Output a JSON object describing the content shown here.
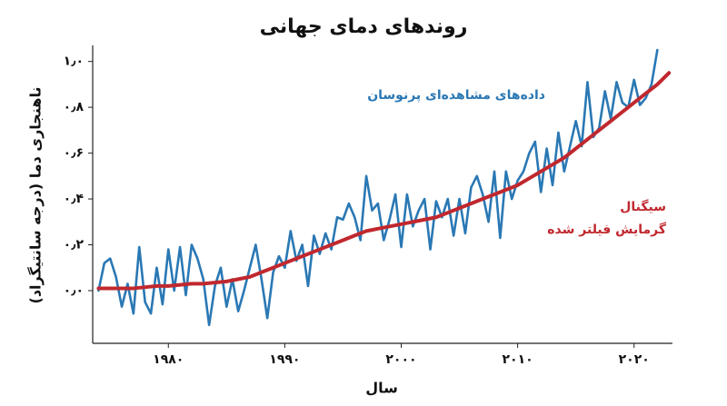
{
  "chart_data": {
    "type": "line",
    "title": "روندهای دمای جهانی",
    "xlabel": "سال",
    "ylabel": "ناهنجاری دما (درجه سانتیگراد)",
    "xlim": [
      1973.5,
      2023.3
    ],
    "ylim": [
      -0.23,
      1.07
    ],
    "xticks": [
      {
        "value": 1980,
        "label": "۱۹۸۰"
      },
      {
        "value": 1990,
        "label": "۱۹۹۰"
      },
      {
        "value": 2000,
        "label": "۲۰۰۰"
      },
      {
        "value": 2010,
        "label": "۲۰۱۰"
      },
      {
        "value": 2020,
        "label": "۲۰۲۰"
      }
    ],
    "yticks": [
      {
        "value": 0,
        "label": "۰٫۰"
      },
      {
        "value": 0.2,
        "label": "۰٫۲"
      },
      {
        "value": 0.4,
        "label": "۰٫۴"
      },
      {
        "value": 0.6,
        "label": "۰٫۶"
      },
      {
        "value": 0.8,
        "label": "۰٫۸"
      },
      {
        "value": 1,
        "label": "۱٫۰"
      }
    ],
    "annotations": [
      "داده‌های مشاهده‌ای پرنوسان",
      "سیگنال",
      "گرمایش فیلتر شده"
    ],
    "series": [
      {
        "color": "#2a78b4",
        "x": [
          1974,
          1974.5,
          1975,
          1975.5,
          1976,
          1976.5,
          1977,
          1977.5,
          1978,
          1978.5,
          1979,
          1979.5,
          1980,
          1980.5,
          1981,
          1981.5,
          1982,
          1982.5,
          1983,
          1983.5,
          1984,
          1984.5,
          1985,
          1985.5,
          1986,
          1986.5,
          1987,
          1987.5,
          1988,
          1988.5,
          1989,
          1989.5,
          1990,
          1990.5,
          1991,
          1991.5,
          1992,
          1992.5,
          1993,
          1993.5,
          1994,
          1994.5,
          1995,
          1995.5,
          1996,
          1996.5,
          1997,
          1997.5,
          1998,
          1998.5,
          1999,
          1999.5,
          2000,
          2000.5,
          2001,
          2001.5,
          2002,
          2002.5,
          2003,
          2003.5,
          2004,
          2004.5,
          2005,
          2005.5,
          2006,
          2006.5,
          2007,
          2007.5,
          2008,
          2008.5,
          2009,
          2009.5,
          2010,
          2010.5,
          2011,
          2011.5,
          2012,
          2012.5,
          2013,
          2013.5,
          2014,
          2014.5,
          2015,
          2015.5,
          2016,
          2016.5,
          2017,
          2017.5,
          2018,
          2018.5,
          2019,
          2019.5,
          2020,
          2020.5,
          2021,
          2021.5,
          2022
        ],
        "values": [
          0.0,
          0.12,
          0.14,
          0.06,
          -0.07,
          0.03,
          -0.1,
          0.19,
          -0.05,
          -0.1,
          0.1,
          -0.06,
          0.18,
          0.0,
          0.19,
          -0.02,
          0.2,
          0.14,
          0.05,
          -0.15,
          0.02,
          0.1,
          -0.07,
          0.05,
          -0.09,
          0.0,
          0.1,
          0.2,
          0.05,
          -0.12,
          0.08,
          0.15,
          0.1,
          0.26,
          0.13,
          0.2,
          0.02,
          0.24,
          0.16,
          0.25,
          0.18,
          0.32,
          0.31,
          0.38,
          0.32,
          0.22,
          0.5,
          0.35,
          0.38,
          0.22,
          0.31,
          0.42,
          0.19,
          0.42,
          0.28,
          0.35,
          0.4,
          0.18,
          0.39,
          0.32,
          0.4,
          0.24,
          0.4,
          0.25,
          0.45,
          0.5,
          0.42,
          0.3,
          0.52,
          0.23,
          0.52,
          0.4,
          0.48,
          0.52,
          0.6,
          0.65,
          0.43,
          0.62,
          0.46,
          0.69,
          0.52,
          0.63,
          0.74,
          0.63,
          0.91,
          0.67,
          0.71,
          0.87,
          0.75,
          0.91,
          0.82,
          0.8,
          0.92,
          0.81,
          0.84,
          0.9,
          1.05
        ]
      },
      {
        "color": "#c0282e",
        "x": [
          1974,
          1975,
          1976,
          1977,
          1978,
          1979,
          1980,
          1981,
          1982,
          1983,
          1984,
          1985,
          1986,
          1987,
          1988,
          1989,
          1990,
          1991,
          1992,
          1993,
          1994,
          1995,
          1996,
          1997,
          1998,
          1999,
          2000,
          2001,
          2002,
          2003,
          2004,
          2005,
          2006,
          2007,
          2008,
          2009,
          2010,
          2011,
          2012,
          2013,
          2014,
          2015,
          2016,
          2017,
          2018,
          2019,
          2020,
          2021,
          2022,
          2023
        ],
        "values": [
          0.01,
          0.01,
          0.01,
          0.01,
          0.015,
          0.02,
          0.02,
          0.025,
          0.03,
          0.03,
          0.035,
          0.04,
          0.05,
          0.06,
          0.08,
          0.1,
          0.12,
          0.14,
          0.16,
          0.18,
          0.2,
          0.22,
          0.24,
          0.26,
          0.27,
          0.28,
          0.29,
          0.3,
          0.31,
          0.32,
          0.34,
          0.36,
          0.38,
          0.4,
          0.42,
          0.44,
          0.46,
          0.49,
          0.52,
          0.55,
          0.58,
          0.62,
          0.66,
          0.7,
          0.74,
          0.78,
          0.82,
          0.86,
          0.9,
          0.95
        ]
      }
    ]
  }
}
